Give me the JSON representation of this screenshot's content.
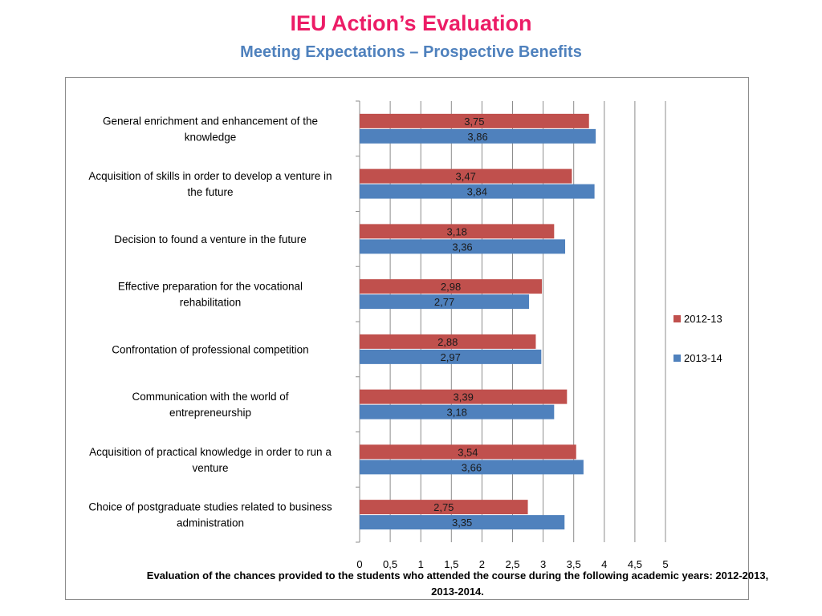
{
  "title": "IEU Action’s Evaluation",
  "subtitle": "Meeting Expectations – Prospective Benefits",
  "colors": {
    "series_2012": "#c0504d",
    "series_2013": "#4f81bd",
    "title": "#ec1c66",
    "subtitle": "#4f81bd"
  },
  "chart_data": {
    "type": "bar",
    "orientation": "horizontal",
    "title": "Meeting Expectations – Prospective Benefits",
    "xlabel": "Evaluation of the chances provided to the students who attended the course during the following academic years: 2012-2013, 2013-2014.",
    "ylabel": "",
    "xlim": [
      0,
      5
    ],
    "xticks": [
      "0",
      "0,5",
      "1",
      "1,5",
      "2",
      "2,5",
      "3",
      "3,5",
      "4",
      "4,5",
      "5"
    ],
    "grid": "vertical",
    "legend_position": "right",
    "categories": [
      [
        "General enrichment and enhancement of the",
        "knowledge"
      ],
      [
        "Acquisition of skills in order to develop a venture in",
        "the future"
      ],
      [
        "Decision to found a venture in the future"
      ],
      [
        "Effective preparation for the vocational",
        "rehabilitation"
      ],
      [
        "Confrontation of professional competition"
      ],
      [
        "Communication with the world of",
        "entrepreneurship"
      ],
      [
        "Acquisition of practical knowledge in order to run a",
        "venture"
      ],
      [
        "Choice of postgraduate studies related to business",
        "administration"
      ]
    ],
    "series": [
      {
        "name": "2012-13",
        "values": [
          3.75,
          3.47,
          3.18,
          2.98,
          2.88,
          3.39,
          3.54,
          2.75
        ],
        "labels": [
          "3,75",
          "3,47",
          "3,18",
          "2,98",
          "2,88",
          "3,39",
          "3,54",
          "2,75"
        ]
      },
      {
        "name": "2013-14",
        "values": [
          3.86,
          3.84,
          3.36,
          2.77,
          2.97,
          3.18,
          3.66,
          3.35
        ],
        "labels": [
          "3,86",
          "3,84",
          "3,36",
          "2,77",
          "2,97",
          "3,18",
          "3,66",
          "3,35"
        ]
      }
    ]
  }
}
